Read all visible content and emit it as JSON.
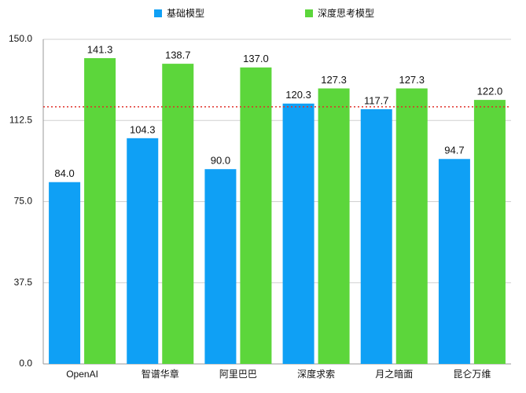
{
  "chart_data": {
    "type": "bar",
    "categories": [
      "OpenAI",
      "智谱华章",
      "阿里巴巴",
      "深度求索",
      "月之暗面",
      "昆仑万维"
    ],
    "series": [
      {
        "name": "基础模型",
        "color": "#0fa0f5",
        "values": [
          84.0,
          104.3,
          90.0,
          120.3,
          117.7,
          94.7
        ],
        "value_labels": [
          "84.0",
          "104.3",
          "90.0",
          "120.3",
          "117.7",
          "94.7"
        ]
      },
      {
        "name": "深度思考模型",
        "color": "#5cd63b",
        "values": [
          141.3,
          138.7,
          137.0,
          127.3,
          127.3,
          122.0
        ],
        "value_labels": [
          "141.3",
          "138.7",
          "137.0",
          "127.3",
          "127.3",
          "122.0"
        ]
      }
    ],
    "ylim": [
      0,
      150
    ],
    "yticks": [
      {
        "value": 0,
        "label": "0.0"
      },
      37.5,
      {
        "value": 75,
        "label": "75.0"
      },
      112.5,
      {
        "value": 150,
        "label": "150.0"
      }
    ],
    "reference_line": {
      "value": 118.8,
      "color": "#e0302a"
    },
    "grid": true,
    "legend": "top"
  }
}
